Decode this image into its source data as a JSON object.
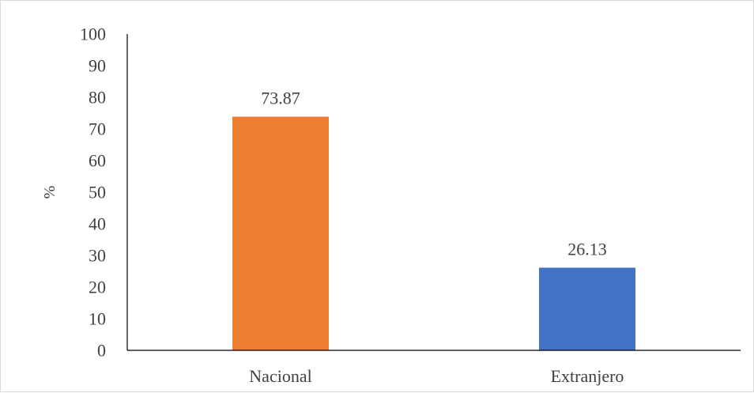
{
  "chart_data": {
    "type": "bar",
    "categories": [
      "Nacional",
      "Extranjero"
    ],
    "values": [
      73.87,
      26.13
    ],
    "data_labels": [
      "73.87",
      "26.13"
    ],
    "bar_colors": [
      "#ED7D31",
      "#4472C4"
    ],
    "title": "",
    "xlabel": "",
    "ylabel": "%",
    "ylim": [
      0,
      100
    ],
    "yticks": [
      0,
      10,
      20,
      30,
      40,
      50,
      60,
      70,
      80,
      90,
      100
    ],
    "grid": false,
    "legend": "none"
  }
}
